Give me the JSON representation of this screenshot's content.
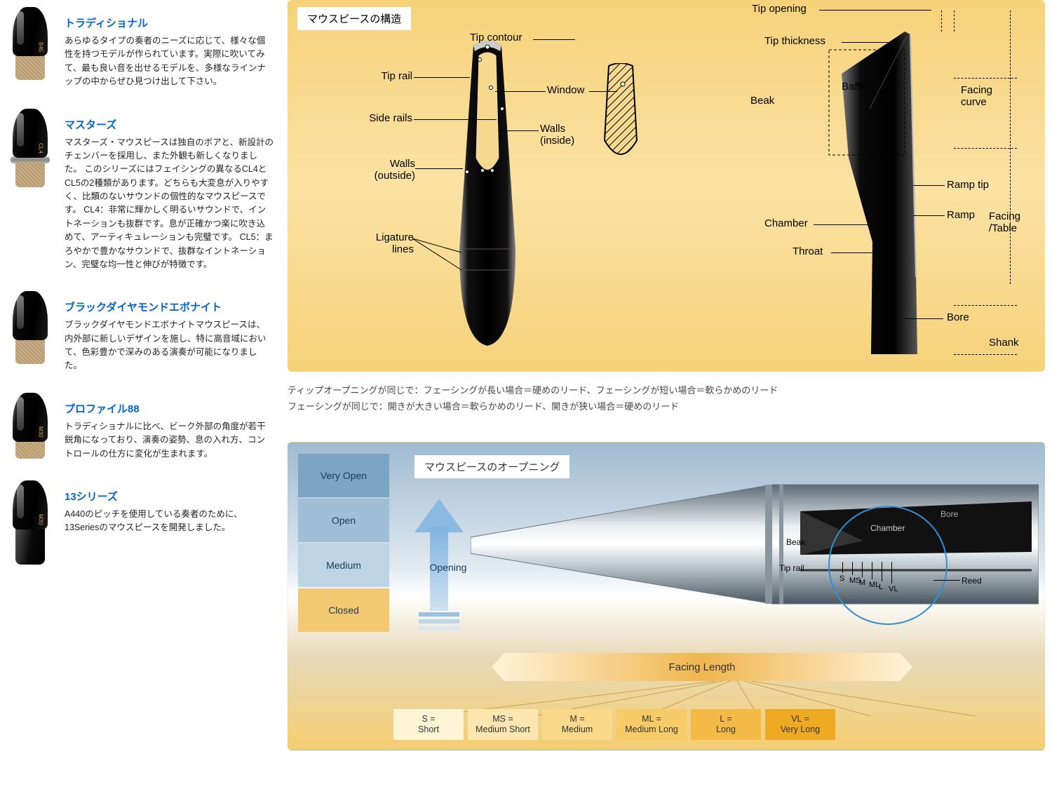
{
  "products": [
    {
      "title": "トラディショナル",
      "desc": "あらゆるタイプの奏者のニーズに応じて、様々な個性を持つモデルが作られています。実際に吹いてみて、最も良い音を出せるモデルを、多様なラインナップの中からぜひ見つけ出して下さい。",
      "badge": "B45",
      "cork": true,
      "ring": false
    },
    {
      "title": "マスターズ",
      "desc": "マスターズ・マウスピースは独自のボアと、新設計のチェンバーを採用し、また外観も新しくなりました。\nこのシリーズにはフェイシングの異なるCL4とCL5の2種類があります。どちらも大変息が入りやすく、比類のないサウンドの個性的なマウスピースです。\nCL4：非常に輝かしく明るいサウンドで、イントネーションも抜群です。息が正確かつ楽に吹き込めて、アーティキュレーションも完璧です。\nCL5：まろやかで豊かなサウンドで、抜群なイントネーション、完璧な均一性と伸びが特徴です。",
      "badge": "CL4",
      "cork": true,
      "ring": true
    },
    {
      "title": "ブラックダイヤモンドエボナイト",
      "desc": "ブラックダイヤモンドエボナイトマウスピースは、内外部に新しいデザインを施し、特に高音域において、色彩豊かで深みのある演奏が可能になりました。",
      "badge": "",
      "cork": true,
      "ring": false
    },
    {
      "title": "プロファイル88",
      "desc": "トラディショナルに比べ、ビーク外部の角度が若干鋭角になっており、演奏の姿勢、息の入れ方、コントロールの仕方に変化が生まれます。",
      "badge": "M30",
      "cork": true,
      "ring": false
    },
    {
      "title": "13シリーズ",
      "desc": "A440のピッチを使用している奏者のために、13Seriesのマウスピースを開発しました。",
      "badge": "M30",
      "cork": false,
      "ring": false
    }
  ],
  "structure": {
    "title": "マウスピースの構造",
    "front_labels": {
      "tip_contour": "Tip contour",
      "tip_rail": "Tip rail",
      "side_rails": "Side rails",
      "walls_outside": "Walls\n(outside)",
      "walls_inside": "Walls\n(inside)",
      "window": "Window",
      "ligature_lines": "Ligature\nlines"
    },
    "side_labels": {
      "tip_opening": "Tip opening",
      "tip_thickness": "Tip thickness",
      "beak": "Beak",
      "baffle": "Baffle",
      "facing_curve": "Facing\ncurve",
      "ramp_tip": "Ramp tip",
      "ramp": "Ramp",
      "chamber": "Chamber",
      "throat": "Throat",
      "facing_table": "Facing\n/Table",
      "bore": "Bore",
      "shank": "Shank"
    },
    "notes": [
      "ティップオープニングが同じで：フェーシングが長い場合＝硬めのリード、フェーシングが短い場合＝軟らかめのリード",
      "フェーシングが同じで：開きが大きい場合＝軟らかめのリード、開きが狭い場合＝硬めのリード"
    ],
    "colors": {
      "panel_bg_top": "#f6d27a",
      "panel_bg_mid": "#fbe2a4"
    }
  },
  "opening": {
    "title": "マウスピースのオープニング",
    "stack": [
      {
        "label": "Very Open",
        "color": "#7ca4c4"
      },
      {
        "label": "Open",
        "color": "#9fbfd8"
      },
      {
        "label": "Medium",
        "color": "#bdd4e5"
      },
      {
        "label": "Closed",
        "color": "#f2c871"
      }
    ],
    "arrow_label": "Opening",
    "side_part_labels": {
      "beak": "Beak",
      "chamber": "Chamber",
      "bore": "Bore",
      "tip_rail": "Tip rail",
      "reed": "Reed"
    },
    "tick_marks": [
      "S",
      "MS",
      "M",
      "ML",
      "L",
      "VL"
    ],
    "facing_bar": "Facing Length",
    "lengths": [
      {
        "code": "S",
        "name": "Short",
        "color": "#fff4d6"
      },
      {
        "code": "MS",
        "name": "Medium Short",
        "color": "#fde6b0"
      },
      {
        "code": "M",
        "name": "Medium",
        "color": "#fbd98a"
      },
      {
        "code": "ML",
        "name": "Medium Long",
        "color": "#f7cb67"
      },
      {
        "code": "L",
        "name": "Long",
        "color": "#f3bb45"
      },
      {
        "code": "VL",
        "name": "Very Long",
        "color": "#efaa24"
      }
    ]
  }
}
